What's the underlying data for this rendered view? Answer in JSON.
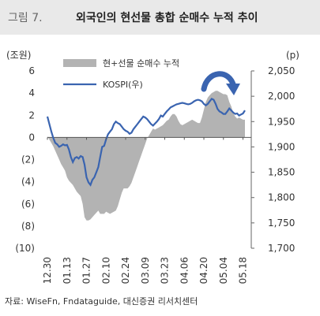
{
  "header": {
    "figure_number": "그림 7.",
    "title": "외국인의 현선물 총합 순매수 누적 추이"
  },
  "source": "자료: WiseFn, Fndataguide, 대신증권 리서치센터",
  "colors": {
    "area": "#b3b3b3",
    "line": "#3a64b0",
    "arrow": "#3a64b0",
    "header_bg": "#e9e9e9"
  },
  "chart_data": {
    "type": "area+line",
    "y_left_unit": "(조원)",
    "y_right_unit": "(p)",
    "ylim_left": [
      -10,
      6
    ],
    "ylim_right": [
      1700,
      2050
    ],
    "left_ticks": [
      "6",
      "4",
      "2",
      "0",
      "(2)",
      "(4)",
      "(6)",
      "(8)",
      "(10)"
    ],
    "left_tick_values": [
      6,
      4,
      2,
      0,
      -2,
      -4,
      -6,
      -8,
      -10
    ],
    "right_ticks": [
      "2,050",
      "2,000",
      "1,950",
      "1,900",
      "1,850",
      "1,800",
      "1,750",
      "1,700"
    ],
    "right_tick_values": [
      2050,
      2000,
      1950,
      1900,
      1850,
      1800,
      1750,
      1700
    ],
    "x_tick_labels": [
      "12.30",
      "01.13",
      "01.27",
      "02.10",
      "02.24",
      "03.09",
      "03.23",
      "04.06",
      "04.20",
      "05.04",
      "05.18"
    ],
    "x_tick_index": [
      0,
      10,
      20,
      30,
      40,
      50,
      60,
      70,
      80,
      90,
      100
    ],
    "x_count": 102,
    "legend": [
      {
        "label": "현+선물 순매수 누적",
        "kind": "area"
      },
      {
        "label": "KOSPI(우)",
        "kind": "line"
      }
    ],
    "series": [
      {
        "name": "현+선물 순매수 누적",
        "axis": "left",
        "values": [
          0.1,
          -0.2,
          -0.5,
          -0.8,
          -1.2,
          -1.6,
          -2,
          -2.4,
          -2.7,
          -3,
          -3.6,
          -3.9,
          -4.1,
          -4.3,
          -4.6,
          -4.9,
          -5.1,
          -5.3,
          -6,
          -7.2,
          -7.5,
          -7.5,
          -7.4,
          -7.2,
          -7,
          -6.8,
          -6.6,
          -6.9,
          -6.9,
          -6.9,
          -6.7,
          -6.8,
          -6.9,
          -6.8,
          -6.7,
          -6.6,
          -6.2,
          -5.6,
          -5,
          -4.6,
          -4.6,
          -4.6,
          -4.4,
          -4.1,
          -3.6,
          -3.1,
          -2.6,
          -2.1,
          -1.6,
          -1.1,
          -0.6,
          -0.1,
          0.2,
          0.5,
          0.8,
          0.7,
          0.8,
          0.9,
          1,
          1.1,
          1.3,
          1.5,
          1.6,
          1.9,
          2.1,
          2.1,
          1.9,
          1.5,
          1.2,
          1.1,
          1.2,
          1.3,
          1.4,
          1.5,
          1.6,
          1.5,
          1.4,
          1.3,
          1.3,
          1.8,
          2.5,
          3.2,
          3.6,
          3.8,
          4,
          4.1,
          4.2,
          4.2,
          4.1,
          4,
          3.9,
          3.9,
          3.8,
          3.2,
          2.8,
          2.2,
          1.9,
          1.7,
          1.8,
          1.7,
          1.6,
          1.6
        ]
      },
      {
        "name": "KOSPI(우)",
        "axis": "right",
        "values": [
          1960,
          1945,
          1930,
          1918,
          1908,
          1905,
          1900,
          1902,
          1905,
          1903,
          1904,
          1895,
          1880,
          1870,
          1878,
          1880,
          1877,
          1882,
          1880,
          1865,
          1840,
          1830,
          1825,
          1835,
          1840,
          1850,
          1860,
          1880,
          1900,
          1902,
          1915,
          1925,
          1930,
          1935,
          1945,
          1950,
          1947,
          1945,
          1940,
          1935,
          1932,
          1930,
          1926,
          1928,
          1935,
          1940,
          1945,
          1950,
          1955,
          1960,
          1958,
          1955,
          1950,
          1945,
          1942,
          1946,
          1950,
          1955,
          1962,
          1960,
          1965,
          1970,
          1974,
          1978,
          1980,
          1982,
          1984,
          1985,
          1986,
          1987,
          1986,
          1985,
          1984,
          1985,
          1987,
          1990,
          1992,
          1993,
          1992,
          1990,
          1985,
          1982,
          1985,
          1990,
          1995,
          1993,
          1985,
          1975,
          1970,
          1968,
          1965,
          1965,
          1970,
          1976,
          1972,
          1968,
          1965,
          1966,
          1962,
          1964,
          1966,
          1972
        ]
      }
    ]
  }
}
